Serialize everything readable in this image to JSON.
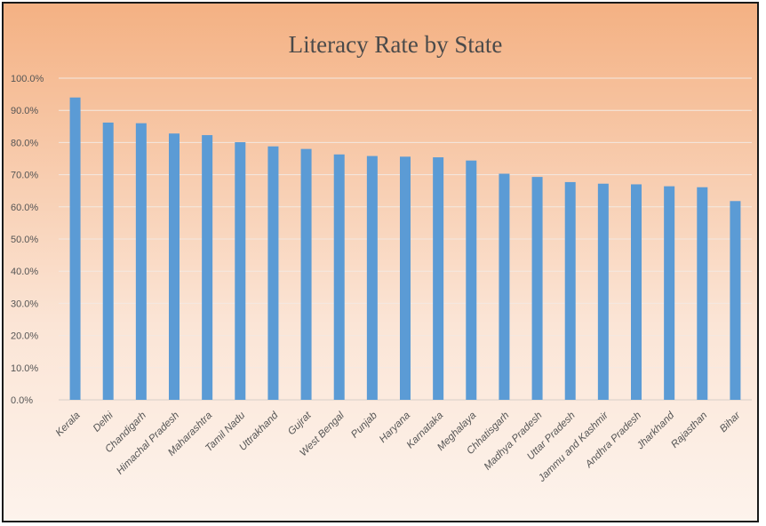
{
  "chart_data": {
    "type": "bar",
    "title": "Literacy Rate by State",
    "xlabel": "",
    "ylabel": "",
    "ylim": [
      0,
      100
    ],
    "y_tick_step": 10,
    "y_tick_format": "percent-1-decimal",
    "y_ticks": [
      "0.0%",
      "10.0%",
      "20.0%",
      "30.0%",
      "40.0%",
      "50.0%",
      "60.0%",
      "70.0%",
      "80.0%",
      "90.0%",
      "100.0%"
    ],
    "grid": true,
    "legend": "none",
    "bar_color": "#5b9bd5",
    "background_gradient": [
      "#f4b183",
      "#fbe5d6",
      "#fdf3ec"
    ],
    "categories": [
      "Kerala",
      "Delhi",
      "Chandigarh",
      "Himachal Pradesh",
      "Maharashtra",
      "Tamil Nadu",
      "Uttrakhand",
      "Gujrat",
      "West Bengal",
      "Punjab",
      "Haryana",
      "Karnataka",
      "Meghalaya",
      "Chhatisgarh",
      "Madhya Pradesh",
      "Uttar Pradesh",
      "Jammu and Kashmir",
      "Andhra Pradesh",
      "Jharkhand",
      "Rajasthan",
      "Bihar"
    ],
    "values": [
      94.0,
      86.2,
      86.0,
      82.8,
      82.3,
      80.1,
      78.8,
      78.0,
      76.3,
      75.8,
      75.6,
      75.4,
      74.4,
      70.3,
      69.3,
      67.7,
      67.2,
      67.0,
      66.4,
      66.1,
      61.8
    ]
  }
}
